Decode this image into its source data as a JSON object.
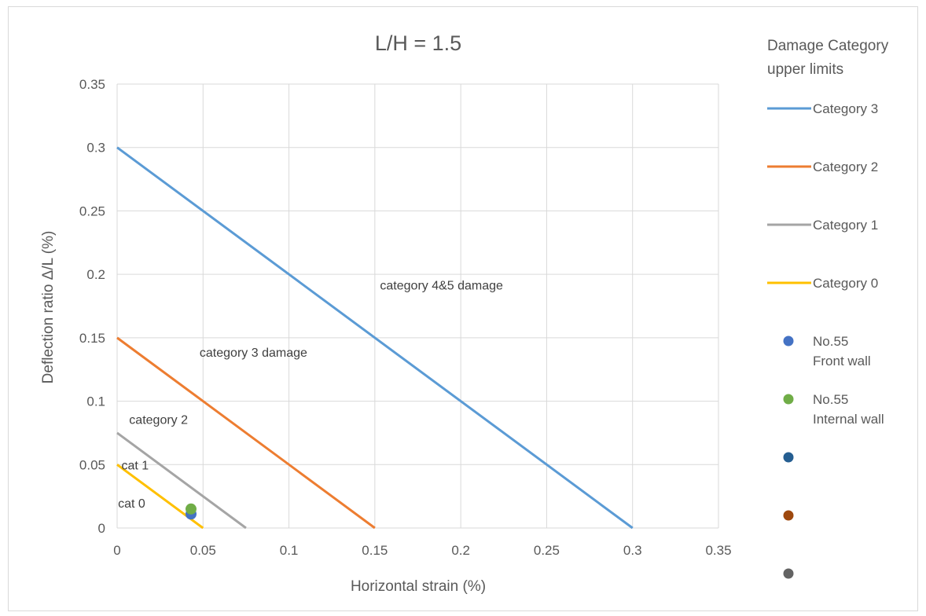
{
  "chart_data": {
    "type": "line",
    "title": "L/H = 1.5",
    "xlabel": "Horizontal strain (%)",
    "ylabel": "Deflection ratio Δ/L (%)",
    "xlim": [
      0,
      0.35
    ],
    "ylim": [
      0,
      0.35
    ],
    "x_ticks": [
      "0",
      "0.05",
      "0.1",
      "0.15",
      "0.2",
      "0.25",
      "0.3",
      "0.35"
    ],
    "y_ticks": [
      "0",
      "0.05",
      "0.1",
      "0.15",
      "0.2",
      "0.25",
      "0.3",
      "0.35"
    ],
    "grid": true,
    "legend_title": "Damage Category upper limits",
    "legend_title_lines": [
      "Damage Category",
      "upper limits"
    ],
    "legend_position": "right",
    "series": [
      {
        "name": "Category 3",
        "kind": "line",
        "color": "#5B9BD5",
        "x": [
          0,
          0.3
        ],
        "y": [
          0.3,
          0
        ]
      },
      {
        "name": "Category 2",
        "kind": "line",
        "color": "#ED7D31",
        "x": [
          0,
          0.15
        ],
        "y": [
          0.15,
          0
        ]
      },
      {
        "name": "Category 1",
        "kind": "line",
        "color": "#A5A5A5",
        "x": [
          0,
          0.075
        ],
        "y": [
          0.075,
          0
        ]
      },
      {
        "name": "Category 0",
        "kind": "line",
        "color": "#FFC000",
        "x": [
          0,
          0.05
        ],
        "y": [
          0.05,
          0
        ]
      },
      {
        "name": "No.55 Front wall",
        "name_lines": [
          "No.55",
          "Front wall"
        ],
        "kind": "point",
        "color": "#4472C4",
        "x": [
          0.043
        ],
        "y": [
          0.011
        ]
      },
      {
        "name": "No.55 Internal wall",
        "name_lines": [
          "No.55",
          "Internal wall"
        ],
        "kind": "point",
        "color": "#70AD47",
        "x": [
          0.043
        ],
        "y": [
          0.015
        ]
      },
      {
        "name": "",
        "kind": "point",
        "color": "#255E91",
        "x": [],
        "y": []
      },
      {
        "name": "",
        "kind": "point",
        "color": "#9E480E",
        "x": [],
        "y": []
      },
      {
        "name": "",
        "kind": "point",
        "color": "#636363",
        "x": [],
        "y": []
      }
    ],
    "annotations": [
      {
        "text": "category 4&5 damage",
        "x": 0.153,
        "y": 0.188
      },
      {
        "text": "category 3 damage",
        "x": 0.048,
        "y": 0.135
      },
      {
        "text": "category 2",
        "x": 0.007,
        "y": 0.082
      },
      {
        "text": "cat 1",
        "x": 0.0025,
        "y": 0.046
      },
      {
        "text": "cat 0",
        "x": 0.0005,
        "y": 0.016
      }
    ]
  }
}
